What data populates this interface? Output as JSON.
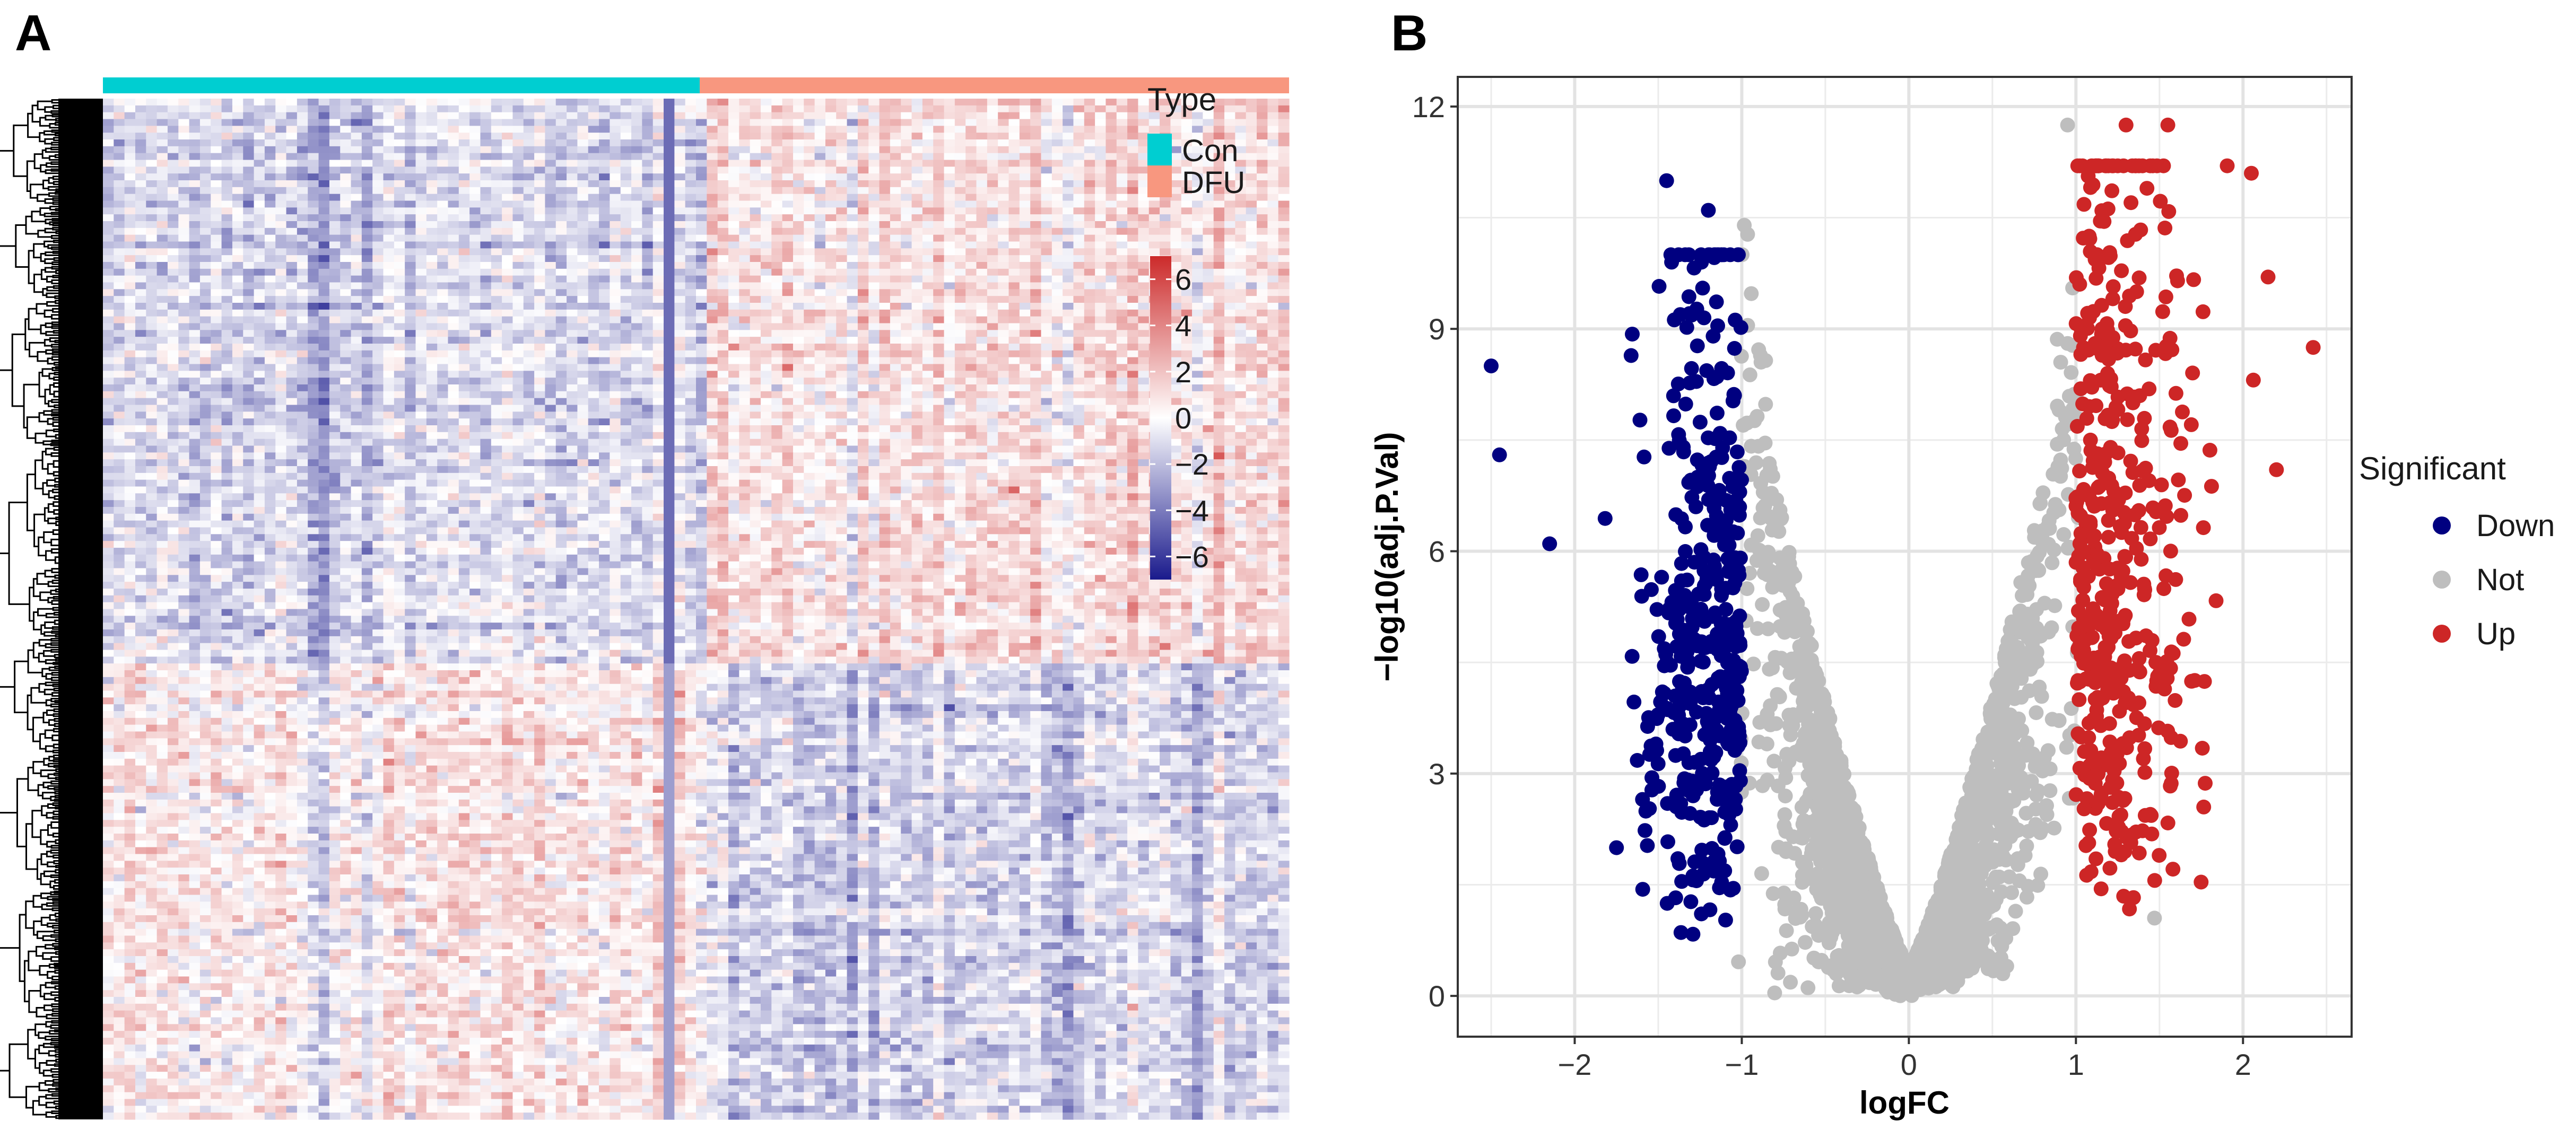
{
  "chart_data": [
    {
      "panel": "A",
      "type": "heatmap",
      "title": "",
      "annotation": {
        "title": "Type",
        "groups": [
          {
            "name": "Con",
            "color": "#00CED1"
          },
          {
            "name": "DFU",
            "color": "#F8977F"
          }
        ]
      },
      "color_scale": {
        "ticks": [
          6,
          4,
          2,
          0,
          -2,
          -4,
          -6
        ],
        "tick_labels": [
          "6",
          "4",
          "2",
          "0",
          "−2",
          "−4",
          "−6"
        ],
        "range": [
          -7,
          7
        ],
        "low_color": "#1A1A8C",
        "mid_color": "#FFFFFF",
        "high_color": "#CC2A2A"
      },
      "dendrogram": "rows"
    },
    {
      "panel": "B",
      "type": "scatter",
      "title": "",
      "xlabel": "logFC",
      "ylabel": "−log10(adj.P.Val)",
      "xlim": [
        -2.7,
        2.65
      ],
      "ylim": [
        -0.55,
        12.4
      ],
      "xticks": [
        -2,
        -1,
        0,
        1,
        2
      ],
      "xtick_labels": [
        "−2",
        "−1",
        "0",
        "1",
        "2"
      ],
      "yticks": [
        0,
        3,
        6,
        9,
        12
      ],
      "ytick_labels": [
        "0",
        "3",
        "6",
        "9",
        "12"
      ],
      "grid": true,
      "legend": {
        "title": "Significant",
        "position": "right",
        "entries": [
          {
            "name": "Down",
            "color": "#000080"
          },
          {
            "name": "Not",
            "color": "#BEBEBE"
          },
          {
            "name": "Up",
            "color": "#CD2626"
          }
        ]
      },
      "outlier_points": [
        {
          "x": -2.5,
          "y": 8.5,
          "group": "Down"
        },
        {
          "x": -2.45,
          "y": 7.3,
          "group": "Down"
        },
        {
          "x": -2.15,
          "y": 6.1,
          "group": "Down"
        },
        {
          "x": -1.45,
          "y": 11.0,
          "group": "Down"
        },
        {
          "x": -1.2,
          "y": 10.6,
          "group": "Down"
        },
        {
          "x": -1.42,
          "y": 9.9,
          "group": "Down"
        },
        {
          "x": -1.75,
          "y": 2.0,
          "group": "Down"
        },
        {
          "x": 0.95,
          "y": 11.75,
          "group": "Not"
        },
        {
          "x": 1.47,
          "y": 1.05,
          "group": "Not"
        },
        {
          "x": 2.42,
          "y": 8.75,
          "group": "Up"
        },
        {
          "x": 2.2,
          "y": 7.1,
          "group": "Up"
        },
        {
          "x": 2.05,
          "y": 11.1,
          "group": "Up"
        },
        {
          "x": 2.15,
          "y": 9.7,
          "group": "Up"
        },
        {
          "x": 1.3,
          "y": 11.75,
          "group": "Up"
        },
        {
          "x": 1.55,
          "y": 11.75,
          "group": "Up"
        },
        {
          "x": 1.12,
          "y": 1.85,
          "group": "Up"
        }
      ]
    }
  ]
}
